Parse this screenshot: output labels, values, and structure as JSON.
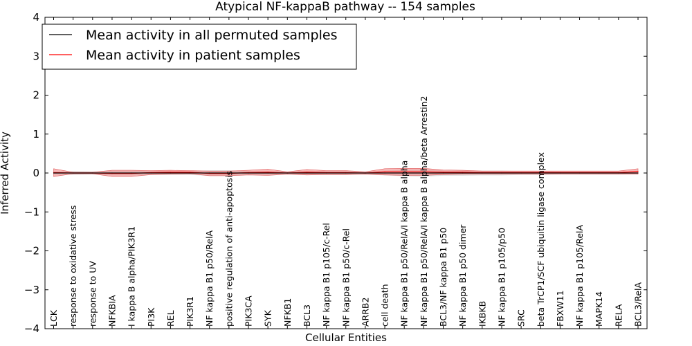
{
  "chart_data": {
    "type": "line",
    "title": "Atypical NF-kappaB pathway -- 154 samples",
    "xlabel": "Cellular Entities",
    "ylabel": "Inferred Activity",
    "ylim": [
      -4,
      4
    ],
    "yticks": [
      4,
      3,
      2,
      1,
      0,
      -1,
      -2,
      -3,
      -4
    ],
    "ytick_labels": [
      "4",
      "3",
      "2",
      "1",
      "0",
      "−1",
      "−2",
      "−3",
      "−4"
    ],
    "grid": false,
    "legend_position": "top-left",
    "categories": [
      "LCK",
      "response to oxidative stress",
      "response to UV",
      "NFKBIA",
      "I kappa B alpha/PIK3R1",
      "PI3K",
      "REL",
      "PIK3R1",
      "NF kappa B1 p50/RelA",
      "positive regulation of anti-apoptosis",
      "PIK3CA",
      "SYK",
      "NFKB1",
      "BCL3",
      "NF kappa B1 p105/c-Rel",
      "NF kappa B1 p50/c-Rel",
      "ARRB2",
      "cell death",
      "NF kappa B1 p50/RelA/I kappa B alpha",
      "NF kappa B1 p50/RelA/I kappa B alpha/beta Arrestin2",
      "BCL3/NF kappa B1 p50",
      "NF kappa B1 p50 dimer",
      "IKBKB",
      "NF kappa B1 p105/p50",
      "SRC",
      "beta TrCP1/SCF ubiquitin ligase complex",
      "FBXW11",
      "NF kappa B1 p105/RelA",
      "MAPK14",
      "RELA",
      "BCL3/RelA"
    ],
    "series": [
      {
        "name": "Mean activity in all permuted samples",
        "color": "#000000",
        "band_color": "#c8c8c8",
        "values": [
          0,
          0,
          0,
          0,
          0,
          0,
          0,
          0,
          0,
          0,
          0,
          0,
          0,
          0,
          0,
          0,
          0,
          0,
          0,
          0,
          0,
          0,
          0,
          0,
          0,
          0,
          0,
          0,
          0,
          0,
          0
        ],
        "band": [
          0.03,
          0.05,
          0.04,
          0.06,
          0.06,
          0.05,
          0.05,
          0.05,
          0.07,
          0.07,
          0.05,
          0.05,
          0.04,
          0.05,
          0.05,
          0.05,
          0.04,
          0.06,
          0.08,
          0.09,
          0.07,
          0.07,
          0.06,
          0.06,
          0.05,
          0.05,
          0.04,
          0.04,
          0.04,
          0.04,
          0.03
        ]
      },
      {
        "name": "Mean activity in patient samples",
        "color": "#ff0000",
        "band_color": "#f08080",
        "values": [
          0.01,
          0,
          0,
          -0.01,
          -0.01,
          0.01,
          0.02,
          0.02,
          -0.01,
          -0.01,
          0.01,
          0.02,
          0,
          0.02,
          0.01,
          0.01,
          0,
          0.03,
          0.03,
          0.03,
          0.02,
          0.02,
          0.01,
          0.01,
          0.01,
          0.01,
          0.01,
          0.01,
          0.01,
          0.01,
          0.04
        ],
        "band": [
          0.1,
          0.02,
          0.02,
          0.08,
          0.08,
          0.05,
          0.05,
          0.04,
          0.06,
          0.06,
          0.06,
          0.08,
          0.03,
          0.07,
          0.05,
          0.05,
          0.03,
          0.08,
          0.09,
          0.09,
          0.06,
          0.05,
          0.04,
          0.04,
          0.04,
          0.04,
          0.04,
          0.04,
          0.04,
          0.04,
          0.07
        ]
      }
    ]
  }
}
